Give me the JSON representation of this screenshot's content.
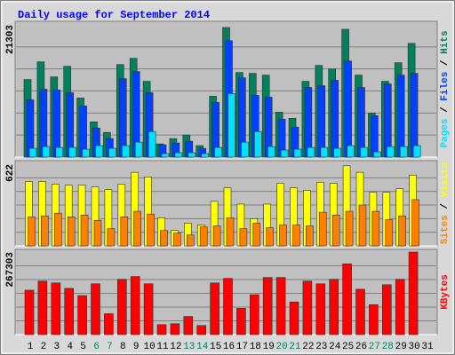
{
  "title": "Daily usage for September 2014",
  "categories": [
    "1",
    "2",
    "3",
    "4",
    "5",
    "6",
    "7",
    "8",
    "9",
    "10",
    "11",
    "12",
    "13",
    "14",
    "15",
    "16",
    "17",
    "18",
    "19",
    "20",
    "21",
    "22",
    "23",
    "24",
    "25",
    "26",
    "27",
    "28",
    "29",
    "30",
    "31"
  ],
  "category_colors": [
    "#000000",
    "#000000",
    "#000000",
    "#000000",
    "#000000",
    "#00805c",
    "#00805c",
    "#000000",
    "#000000",
    "#000000",
    "#000000",
    "#000000",
    "#00805c",
    "#00805c",
    "#000000",
    "#000000",
    "#000000",
    "#000000",
    "#000000",
    "#00805c",
    "#00805c",
    "#000000",
    "#000000",
    "#000000",
    "#000000",
    "#000000",
    "#00805c",
    "#00805c",
    "#000000",
    "#000000",
    "#000000"
  ],
  "legend_separator": "/",
  "chart_data": [
    {
      "type": "bar",
      "ylim": [
        0,
        21303
      ],
      "yticks": [
        21303
      ],
      "grid": true,
      "series": [
        {
          "name": "Hits",
          "color": "#00805c",
          "values": [
            12500,
            15340,
            12920,
            14630,
            9520,
            5680,
            3980,
            14910,
            15910,
            12210,
            2130,
            2980,
            3550,
            1850,
            9800,
            20880,
            13630,
            13490,
            13210,
            7240,
            6250,
            12210,
            14770,
            14200,
            20590,
            13210,
            7100,
            12210,
            15200,
            18320,
            null
          ]
        },
        {
          "name": "Files",
          "color": "#0040ff",
          "values": [
            9230,
            10940,
            10800,
            10370,
            8240,
            4690,
            2980,
            12640,
            13780,
            10370,
            1990,
            2270,
            2560,
            1420,
            8810,
            18750,
            12780,
            9940,
            9660,
            6110,
            4830,
            11220,
            11500,
            12360,
            15480,
            11220,
            6680,
            11790,
            13210,
            13490,
            null
          ]
        },
        {
          "name": "Pages",
          "color": "#00e0ff",
          "values": [
            1420,
            1700,
            1560,
            1560,
            1280,
            1850,
            1420,
            1850,
            2410,
            4120,
            570,
            710,
            710,
            570,
            1560,
            10230,
            2410,
            4120,
            1700,
            1140,
            1280,
            1560,
            1560,
            1420,
            1850,
            1560,
            850,
            1700,
            1700,
            1850,
            null
          ]
        }
      ]
    },
    {
      "type": "bar",
      "ylim": [
        0,
        622
      ],
      "yticks": [
        622
      ],
      "grid": true,
      "series": [
        {
          "name": "Visits",
          "color": "#ffff00",
          "values": [
            491,
            491,
            470,
            463,
            463,
            449,
            428,
            470,
            560,
            525,
            214,
            117,
            173,
            159,
            339,
            442,
            318,
            207,
            318,
            477,
            442,
            422,
            484,
            477,
            610,
            560,
            408,
            408,
            435,
            539,
            null
          ]
        },
        {
          "name": "Sites",
          "color": "#ff8000",
          "values": [
            221,
            228,
            249,
            221,
            235,
            194,
            131,
            221,
            263,
            242,
            117,
            97,
            83,
            145,
            152,
            214,
            131,
            173,
            138,
            159,
            159,
            152,
            256,
            235,
            263,
            311,
            263,
            200,
            228,
            352,
            null
          ]
        }
      ]
    },
    {
      "type": "bar",
      "ylim": [
        0,
        267303
      ],
      "yticks": [
        267303
      ],
      "grid": true,
      "series": [
        {
          "name": "KBytes",
          "color": "#ff0000",
          "values": [
            143900,
            173300,
            167400,
            149800,
            126300,
            164500,
            67600,
            179200,
            188000,
            164500,
            32300,
            35200,
            58700,
            29400,
            167400,
            182100,
            85200,
            129200,
            185000,
            185000,
            105700,
            173300,
            164500,
            179200,
            229100,
            146900,
            96900,
            161600,
            179200,
            267303,
            null
          ]
        }
      ]
    }
  ]
}
